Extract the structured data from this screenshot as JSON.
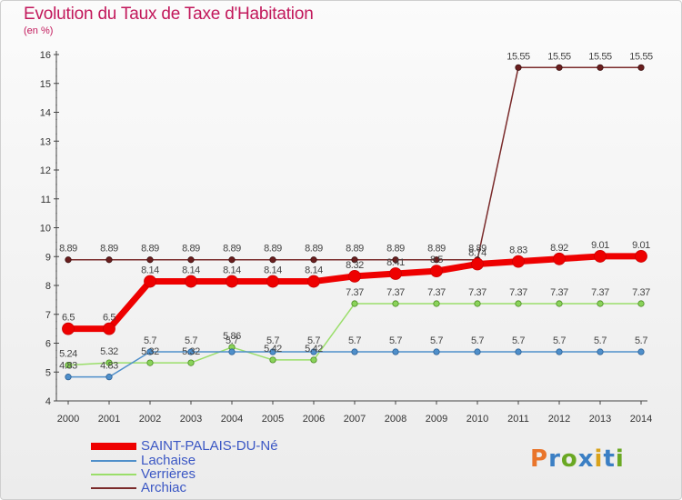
{
  "title": "Evolution du Taux de Taxe d'Habitation",
  "unit": "(en %)",
  "logo": {
    "text": "Proxiti",
    "colors": [
      "#e9752b",
      "#3b7fc4",
      "#6aa823",
      "#3b7fc4",
      "#d9a21b",
      "#3b7fc4",
      "#6aa823"
    ]
  },
  "chart_data": {
    "type": "line",
    "title": "Evolution du Taux de Taxe d'Habitation",
    "ylabel": "(en %)",
    "xlabel": "",
    "x": [
      "2000",
      "2001",
      "2002",
      "2003",
      "2004",
      "2005",
      "2006",
      "2007",
      "2008",
      "2009",
      "2010",
      "2011",
      "2012",
      "2013",
      "2014"
    ],
    "yticks": [
      "4",
      "5",
      "6",
      "7",
      "8",
      "9",
      "10",
      "11",
      "12",
      "13",
      "14",
      "15",
      "16"
    ],
    "ylim": [
      4,
      16
    ],
    "grid": false,
    "legend_position": "bottom-left",
    "series": [
      {
        "name": "SAINT-PALAIS-DU-Né",
        "color": "#ee0000",
        "values": [
          6.5,
          6.5,
          8.14,
          8.14,
          8.14,
          8.14,
          8.14,
          8.32,
          8.41,
          8.5,
          8.74,
          8.83,
          8.92,
          9.01,
          9.01
        ],
        "labels": [
          "6.5",
          "6.5",
          "8.14",
          "8.14",
          "8.14",
          "8.14",
          "8.14",
          "8.32",
          "8.41",
          "8.5",
          "8.74",
          "8.83",
          "8.92",
          "9.01",
          "9.01"
        ]
      },
      {
        "name": "Lachaise",
        "color": "#4f8fca",
        "values": [
          4.83,
          4.83,
          5.7,
          5.7,
          5.7,
          5.7,
          5.7,
          5.7,
          5.7,
          5.7,
          5.7,
          5.7,
          5.7,
          5.7,
          5.7
        ],
        "labels": [
          "4.83",
          "4.83",
          "5.7",
          "5.7",
          "5.7",
          "5.7",
          "5.7",
          "5.7",
          "5.7",
          "5.7",
          "5.7",
          "5.7",
          "5.7",
          "5.7",
          "5.7"
        ]
      },
      {
        "name": "Verrières",
        "color": "#9ade6a",
        "values": [
          5.24,
          5.32,
          5.32,
          5.32,
          5.86,
          5.42,
          5.42,
          7.37,
          7.37,
          7.37,
          7.37,
          7.37,
          7.37,
          7.37,
          7.37
        ],
        "labels": [
          "5.24",
          "5.32",
          "5.32",
          "5.32",
          "5.86",
          "5.42",
          "5.42",
          "7.37",
          "7.37",
          "7.37",
          "7.37",
          "7.37",
          "7.37",
          "7.37",
          "7.37"
        ]
      },
      {
        "name": "Archiac",
        "color": "#7a2b2b",
        "values": [
          8.89,
          8.89,
          8.89,
          8.89,
          8.89,
          8.89,
          8.89,
          8.89,
          8.89,
          8.89,
          8.89,
          15.55,
          15.55,
          15.55,
          15.55
        ],
        "labels": [
          "8.89",
          "8.89",
          "8.89",
          "8.89",
          "8.89",
          "8.89",
          "8.89",
          "8.89",
          "8.89",
          "8.89",
          "8.89",
          "15.55",
          "15.55",
          "15.55",
          "15.55"
        ]
      }
    ]
  }
}
